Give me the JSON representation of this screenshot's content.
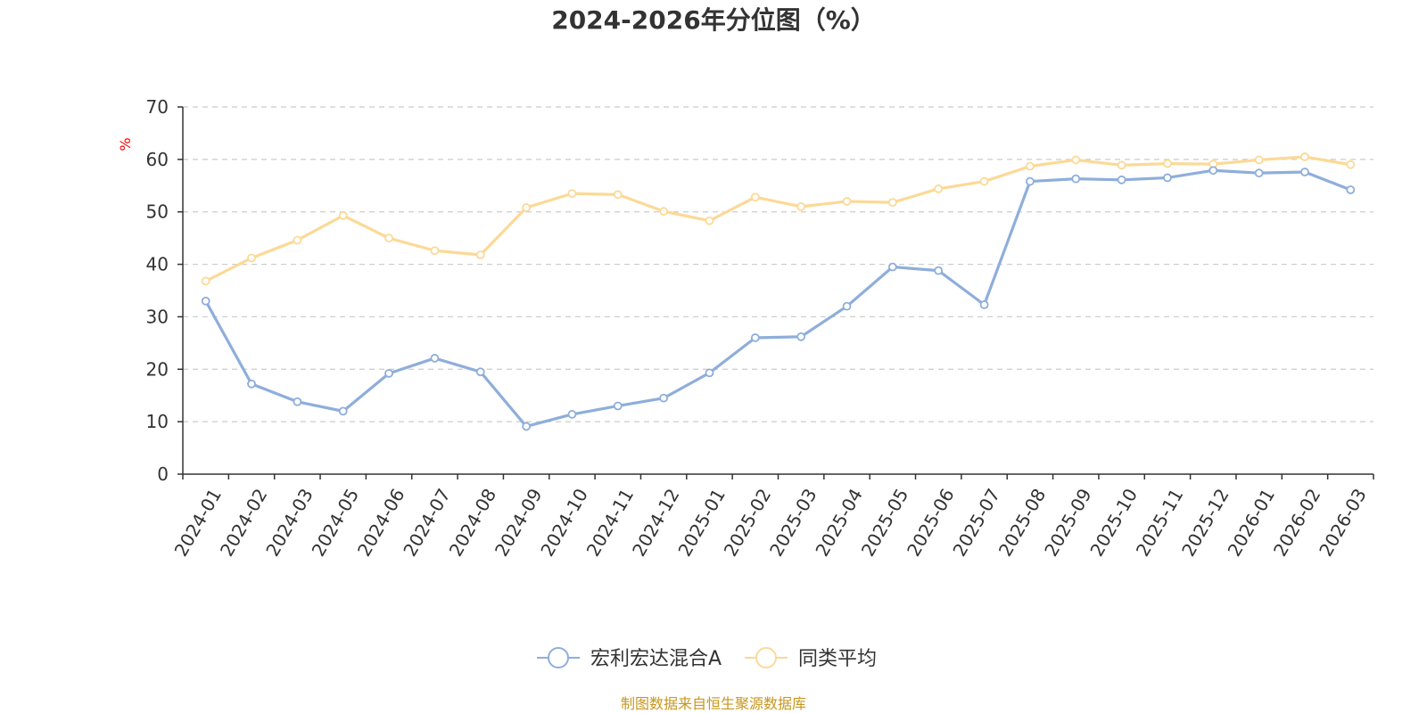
{
  "chart_data": {
    "type": "line",
    "title": "2024-2026年分位图（%）",
    "ylabel": "%",
    "xlabel": "",
    "ylim": [
      0,
      70
    ],
    "yticks": [
      0,
      10,
      20,
      30,
      40,
      50,
      60,
      70
    ],
    "grid": true,
    "legend_position": "bottom",
    "categories": [
      "2024-01",
      "2024-02",
      "2024-03",
      "2024-05",
      "2024-06",
      "2024-07",
      "2024-08",
      "2024-09",
      "2024-10",
      "2024-11",
      "2024-12",
      "2025-01",
      "2025-02",
      "2025-03",
      "2025-04",
      "2025-05",
      "2025-06",
      "2025-07",
      "2025-08",
      "2025-09",
      "2025-10",
      "2025-11",
      "2025-12",
      "2026-01",
      "2026-02",
      "2026-03"
    ],
    "series": [
      {
        "name": "宏利宏达混合A",
        "color": "#8eaedb",
        "values": [
          33.0,
          17.2,
          13.8,
          12.0,
          19.2,
          22.1,
          19.5,
          9.1,
          11.4,
          13.0,
          14.5,
          19.3,
          26.0,
          26.2,
          32.0,
          39.5,
          38.8,
          32.3,
          55.8,
          56.3,
          56.1,
          56.5,
          57.9,
          57.4,
          57.6,
          54.2
        ]
      },
      {
        "name": "同类平均",
        "color": "#fcd996",
        "values": [
          36.8,
          41.2,
          44.6,
          49.3,
          45.0,
          42.6,
          41.8,
          50.8,
          53.5,
          53.3,
          50.1,
          48.3,
          52.8,
          51.0,
          52.0,
          51.8,
          54.4,
          55.8,
          58.7,
          59.9,
          58.9,
          59.2,
          59.1,
          59.9,
          60.5,
          59.0
        ]
      }
    ]
  },
  "colors": {
    "axis": "#333333",
    "grid": "#cccccc",
    "unit_label": "#ff0000",
    "source_text": "#c8961e"
  },
  "source": "制图数据来自恒生聚源数据库"
}
